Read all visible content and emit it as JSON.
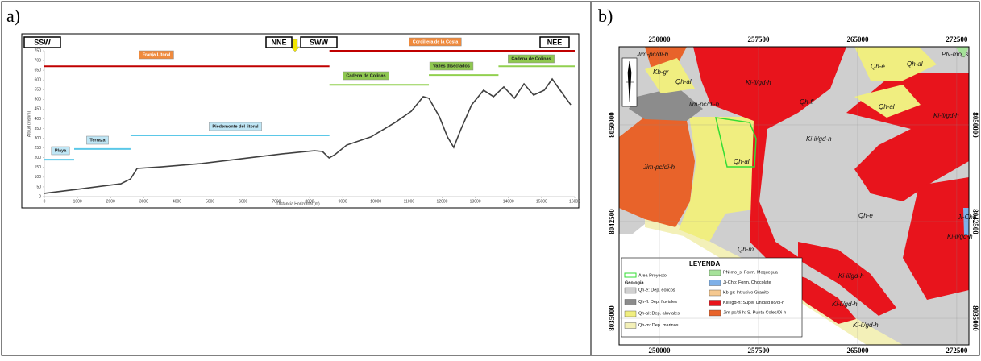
{
  "panels": [
    "a)",
    "b)"
  ],
  "chart_data": {
    "type": "line",
    "y_label": "Altitud (msnm)",
    "x_label": "Distancia Horizontal (m)",
    "direction_labels": [
      "SSW",
      "NNE",
      "SWW",
      "NEE"
    ],
    "x": [
      0,
      970,
      2310,
      2600,
      2800,
      3530,
      4740,
      5960,
      7180,
      8150,
      8390,
      8590,
      8760,
      9120,
      9850,
      10580,
      11070,
      11430,
      11600,
      11920,
      12160,
      12350,
      12570,
      12890,
      13250,
      13550,
      13860,
      14180,
      14470,
      14760,
      15080,
      15320,
      15560,
      15880
    ],
    "values": [
      17,
      37,
      66,
      91,
      145,
      153,
      170,
      195,
      220,
      236,
      232,
      199,
      215,
      265,
      307,
      381,
      439,
      514,
      506,
      410,
      307,
      253,
      348,
      472,
      547,
      514,
      564,
      506,
      580,
      522,
      547,
      605,
      547,
      472
    ],
    "color": "#404040",
    "xlim": [
      0,
      16000
    ],
    "ylim": [
      0,
      750
    ],
    "xticks": [
      0,
      1000,
      2000,
      3000,
      4000,
      5000,
      6000,
      7000,
      8000,
      9000,
      10000,
      11000,
      12000,
      13000,
      14000,
      15000,
      16000
    ],
    "yticks": [
      0,
      50,
      100,
      150,
      200,
      250,
      300,
      350,
      400,
      450,
      500,
      550,
      600,
      650,
      700,
      750
    ],
    "annotations": [
      {
        "text": "Playa",
        "x": [
          0,
          900
        ],
        "y": 190,
        "color": "#5bc8e8",
        "box_color": "#bfe6f5"
      },
      {
        "text": "Terraza",
        "x": [
          900,
          2600
        ],
        "y": 245,
        "color": "#5bc8e8",
        "box_color": "#bfe6f5"
      },
      {
        "text": "Piedemonte del litoral",
        "x": [
          2600,
          8600
        ],
        "y": 315,
        "color": "#5bc8e8",
        "box_color": "#bfe6f5"
      },
      {
        "text": "Franja Litoral",
        "x": [
          0,
          8600
        ],
        "y": 670,
        "color": "#c00000",
        "box_color": "#f08a3c"
      },
      {
        "text": "Cordillera de la Costa",
        "x": [
          8600,
          16000
        ],
        "y": 750,
        "color": "#c00000",
        "box_color": "#f08a3c"
      },
      {
        "text": "Cadena de Colinas",
        "x": [
          8600,
          11600
        ],
        "y": 575,
        "color": "#92d050",
        "box_color": "#8fc850"
      },
      {
        "text": "Valles disectados",
        "x": [
          11600,
          13700
        ],
        "y": 625,
        "color": "#92d050",
        "box_color": "#8fc850"
      },
      {
        "text": "Cadena de Colinas",
        "x": [
          13700,
          16000
        ],
        "y": 670,
        "color": "#92d050",
        "box_color": "#8fc850"
      }
    ]
  },
  "map": {
    "xlim": [
      246950,
      273420
    ],
    "ylim": [
      8032940,
      8056060
    ],
    "xticks": [
      250000,
      257500,
      265000,
      272500
    ],
    "yticks": [
      8050000,
      8042500,
      8035000
    ],
    "labels": [
      "Jim-pc/di-h",
      "Kb-gr",
      "Qh-al",
      "Ki-ii/gd-h",
      "Qh-e",
      "Qh-al",
      "PN-mo_s",
      "Qh-fl",
      "Jim-pc/di-h",
      "Ki-ii/gd-h",
      "Qh-al",
      "Ki-ii/gd-h",
      "Qh-al",
      "Jim-pc/di-h",
      "Qh-e",
      "Ji-Cho",
      "Ki-ii/gd-h",
      "Qh-m",
      "Ki-ii/gd-h",
      "Ki-ii/gd-h",
      "Ki-ii/gd-h"
    ],
    "legend": {
      "title": "LEYENDA",
      "project": "Area Proyecto",
      "group": "Geologia",
      "items": [
        {
          "label": "Qh-e: Dep. eolicos",
          "color": "#d0d0d0"
        },
        {
          "label": "Qh-fl: Dep. fluviales",
          "color": "#8c8c8c"
        },
        {
          "label": "Qh-al: Dep. aluviales",
          "color": "#f0ee80"
        },
        {
          "label": "Qh-m: Dep. marinos",
          "color": "#f3f0b8"
        },
        {
          "label": "PN-mo_s: Form. Moquegua",
          "color": "#a6e29a"
        },
        {
          "label": "Ji-Cho: Form. Chocolate",
          "color": "#7eb0e8"
        },
        {
          "label": "Kb-gr: Intrusivo Granito",
          "color": "#f5c890"
        },
        {
          "label": "Ki/ii/gd-h: Super Unidad Ilo/di-h",
          "color": "#e8141c"
        },
        {
          "label": "Jim-pc/di-h: S. Punta Coles/Di-h",
          "color": "#e8632a"
        }
      ]
    }
  }
}
